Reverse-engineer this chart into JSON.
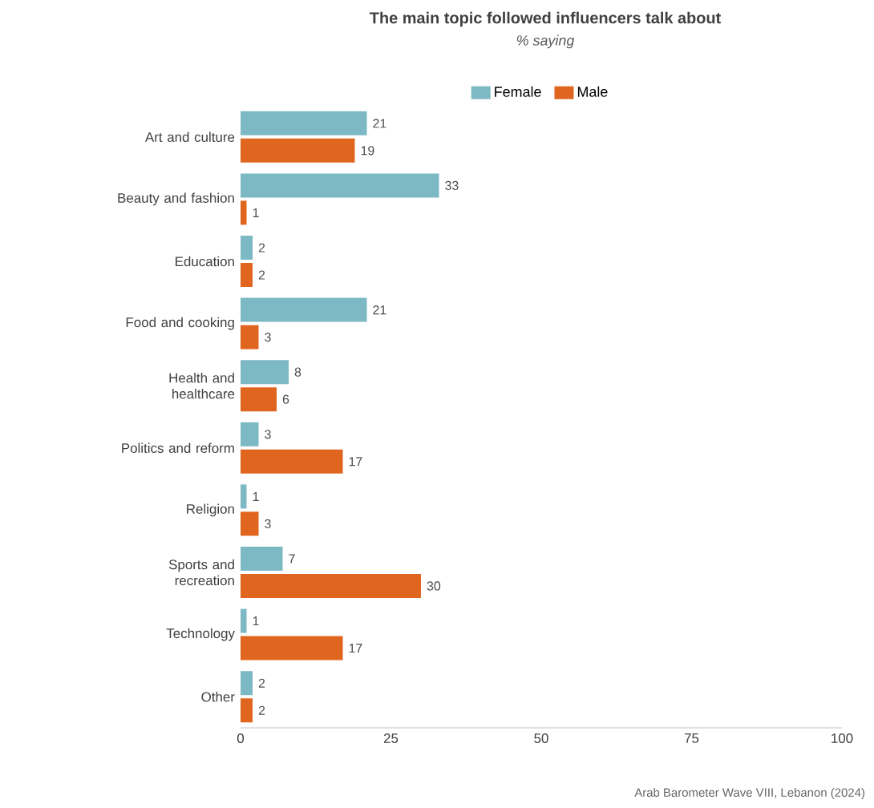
{
  "chart_data": {
    "type": "bar",
    "orientation": "horizontal",
    "title": "The main topic followed influencers talk about",
    "subtitle": "*% saying*",
    "categories": [
      "Art and culture",
      "Beauty and fashion",
      "Education",
      "Food and cooking",
      "Health and healthcare",
      "Politics and reform",
      "Religion",
      "Sports and recreation",
      "Technology",
      "Other"
    ],
    "series": [
      {
        "name": "Female",
        "color": "#7cb9c5",
        "values": [
          21,
          33,
          2,
          21,
          8,
          3,
          1,
          7,
          1,
          2
        ]
      },
      {
        "name": "Male",
        "color": "#e0661f",
        "values": [
          19,
          1,
          2,
          3,
          6,
          17,
          3,
          30,
          17,
          2
        ]
      }
    ],
    "xlim": [
      0,
      100
    ],
    "xticks": [
      0,
      25,
      50,
      75,
      100
    ],
    "legend": "top",
    "data_labels": true,
    "annotations": [
      "Arab Barometer Wave VIII, Lebanon (2024)"
    ]
  }
}
